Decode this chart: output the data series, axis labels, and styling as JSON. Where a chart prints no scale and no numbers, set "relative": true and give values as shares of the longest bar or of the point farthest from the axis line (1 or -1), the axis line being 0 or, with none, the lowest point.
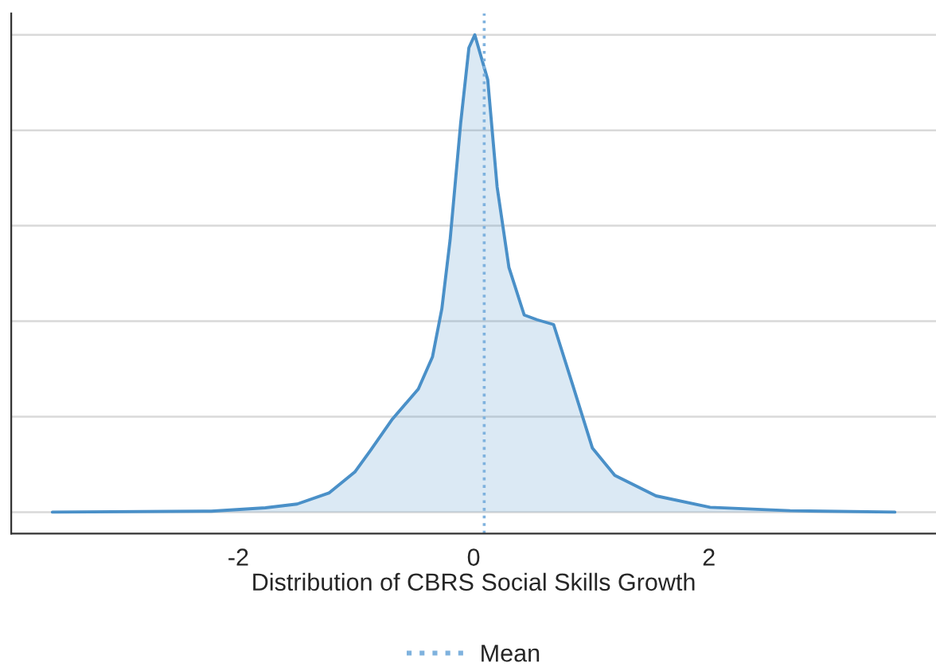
{
  "chart_data": {
    "type": "area",
    "xlabel": "Distribution of CBRS Social Skills Growth",
    "relative": true,
    "x": [
      -3.58,
      -2.23,
      -1.77,
      -1.5,
      -1.23,
      -1.01,
      -0.88,
      -0.69,
      -0.47,
      -0.35,
      -0.27,
      -0.2,
      -0.11,
      -0.04,
      0.01,
      0.12,
      0.2,
      0.3,
      0.43,
      0.54,
      0.68,
      0.84,
      1.01,
      1.2,
      1.55,
      2.01,
      2.69,
      3.58
    ],
    "series": [
      {
        "color": "#4a90c8",
        "values": [
          0,
          0.002,
          0.009,
          0.017,
          0.04,
          0.084,
          0.128,
          0.195,
          0.258,
          0.325,
          0.426,
          0.57,
          0.815,
          0.973,
          1.0,
          0.906,
          0.681,
          0.513,
          0.413,
          0.403,
          0.393,
          0.268,
          0.134,
          0.077,
          0.034,
          0.01,
          0.003,
          0
        ]
      }
    ],
    "xlim": [
      -3.93,
      3.93
    ],
    "xticks": [
      -2,
      0,
      2
    ],
    "ref_lines": [
      {
        "axis": "x",
        "value": 0.09,
        "label": "Mean",
        "color": "#7fb2de",
        "line_style": "dotted"
      }
    ],
    "grid": "y",
    "tick_labels": "x",
    "legend": "bottom"
  }
}
